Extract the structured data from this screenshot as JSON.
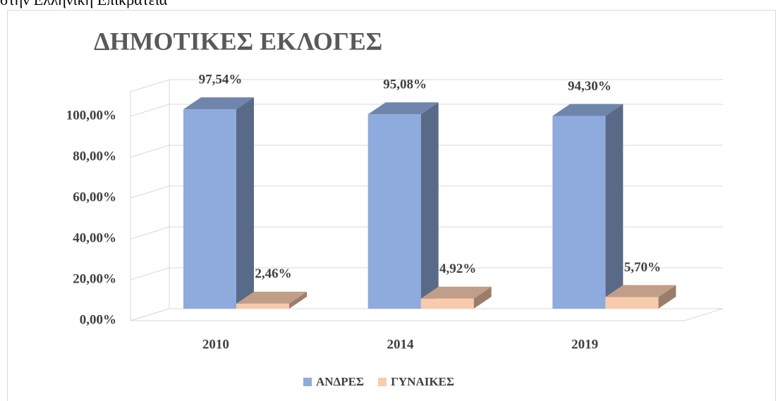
{
  "caption": "στην Ελληνική Επικράτεια",
  "chart_data": {
    "type": "bar3d",
    "title": "ΔΗΜΟΤΙΚΕΣ ΕΚΛΟΓΕΣ",
    "categories": [
      "2010",
      "2014",
      "2019"
    ],
    "series": [
      {
        "name": "ΑΝΔΡΕΣ",
        "color": "#8faadc",
        "values": [
          97.54,
          95.08,
          94.3
        ],
        "value_labels": [
          "97,54%",
          "95,08%",
          "94,30%"
        ]
      },
      {
        "name": "ΓΥΝΑΙΚΕΣ",
        "color": "#f8cbad",
        "values": [
          2.46,
          4.92,
          5.7
        ],
        "value_labels": [
          "2,46%",
          "4,92%",
          "5,70%"
        ]
      }
    ],
    "ylim": [
      0,
      100
    ],
    "yticks": [
      {
        "value": 0,
        "label": "0,00%"
      },
      {
        "value": 20,
        "label": "20,00%"
      },
      {
        "value": 40,
        "label": "40,00%"
      },
      {
        "value": 60,
        "label": "60,00%"
      },
      {
        "value": 80,
        "label": "80,00%"
      },
      {
        "value": 100,
        "label": "100,00%"
      }
    ],
    "grid": true,
    "legend": "bottom"
  }
}
